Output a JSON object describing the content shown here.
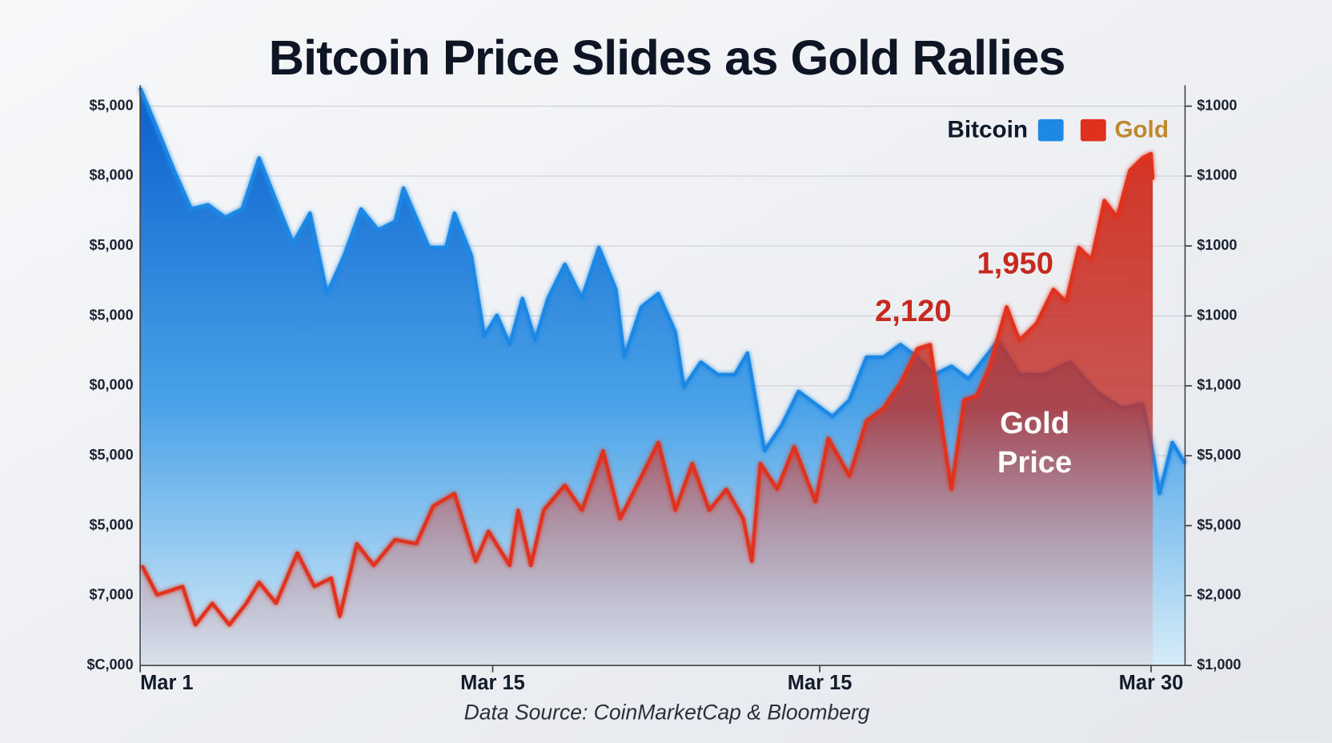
{
  "chart_data": {
    "type": "area",
    "title": "Bitcoin Price Slides as Gold Rallies",
    "source": "Data Source: CoinMarketCap & Bloomberg",
    "grid": true,
    "legend": "upper right",
    "xlim": [
      0,
      123
    ],
    "xticks": [
      {
        "value": 0,
        "label": "Mar 1"
      },
      {
        "value": 41.5,
        "label": "Mar 15"
      },
      {
        "value": 80,
        "label": "Mar 15"
      },
      {
        "value": 119,
        "label": "Mar 30"
      }
    ],
    "ylim": [
      0,
      8.3
    ],
    "yticks": [
      {
        "value": 0,
        "label": "$C,000"
      },
      {
        "value": 1,
        "label": "$7,000"
      },
      {
        "value": 2,
        "label": "$5,000"
      },
      {
        "value": 3,
        "label": "$5,000"
      },
      {
        "value": 4,
        "label": "$0,000"
      },
      {
        "value": 5,
        "label": "$5,000"
      },
      {
        "value": 6,
        "label": "$5,000"
      },
      {
        "value": 7,
        "label": "$8,000"
      },
      {
        "value": 8,
        "label": "$5,000"
      }
    ],
    "y2lim": [
      0,
      8.3
    ],
    "y2ticks": [
      {
        "value": 0,
        "label": "$1,000"
      },
      {
        "value": 1,
        "label": "$2,000"
      },
      {
        "value": 2,
        "label": "$5,000"
      },
      {
        "value": 3,
        "label": "$5,000"
      },
      {
        "value": 4,
        "label": "$1,000"
      },
      {
        "value": 5,
        "label": "$1000"
      },
      {
        "value": 6,
        "label": "$1000"
      },
      {
        "value": 7,
        "label": "$1000"
      },
      {
        "value": 8,
        "label": "$1000"
      }
    ],
    "series": [
      {
        "name": "Bitcoin",
        "color": "#1e88e5",
        "x": [
          0,
          2,
          4,
          6,
          8,
          10,
          12,
          14,
          16,
          18,
          20,
          22,
          24,
          26,
          28,
          30,
          31,
          34,
          36,
          37,
          39,
          40.5,
          42,
          43.5,
          45,
          46.5,
          48,
          50,
          52,
          54,
          56,
          57,
          59,
          61,
          63,
          64,
          66,
          68,
          70,
          71.5,
          73.5,
          75.5,
          77.5,
          79.5,
          81.5,
          83.5,
          85.5,
          87.5,
          89.5,
          91.5,
          93.5,
          95.5,
          97.5,
          99.5,
          101,
          103.5,
          106.5,
          109.5,
          112.5,
          115.5,
          118,
          119,
          120,
          121.5,
          123
        ],
        "values": [
          8.26,
          7.68,
          7.08,
          6.53,
          6.59,
          6.41,
          6.53,
          7.26,
          6.65,
          6.04,
          6.47,
          5.32,
          5.86,
          6.53,
          6.23,
          6.35,
          6.83,
          5.98,
          5.98,
          6.47,
          5.86,
          4.71,
          5.01,
          4.59,
          5.25,
          4.65,
          5.25,
          5.74,
          5.25,
          5.98,
          5.38,
          4.41,
          5.13,
          5.32,
          4.77,
          3.98,
          4.34,
          4.16,
          4.16,
          4.47,
          3.07,
          3.43,
          3.92,
          3.74,
          3.56,
          3.8,
          4.41,
          4.41,
          4.59,
          4.41,
          4.16,
          4.28,
          4.1,
          4.41,
          4.65,
          4.16,
          4.16,
          4.34,
          3.92,
          3.68,
          3.74,
          3.19,
          2.46,
          3.19,
          2.89
        ]
      },
      {
        "name": "Gold",
        "color": "#e0301e",
        "axis": "y2",
        "x": [
          0.2,
          2,
          3.5,
          5,
          6.5,
          8.5,
          10.5,
          12.5,
          14,
          16,
          18.5,
          20.5,
          22.5,
          23.5,
          25.5,
          27.5,
          30,
          32.5,
          34.5,
          37,
          39.5,
          41,
          43.5,
          44.5,
          46,
          47.5,
          50,
          52,
          54.5,
          56.5,
          58.5,
          61,
          63,
          65,
          67,
          69,
          71,
          72,
          73,
          75,
          77,
          79.5,
          81,
          83.5,
          85.5,
          87.5,
          89.5,
          91.5,
          93,
          94.5,
          95.5,
          97,
          98.5,
          100,
          102,
          103.5,
          105.5,
          107.5,
          109,
          110.5,
          112,
          113.5,
          115,
          116.5,
          118,
          119,
          119.2
        ],
        "values": [
          1.43,
          1.01,
          1.07,
          1.13,
          0.58,
          0.89,
          0.58,
          0.89,
          1.19,
          0.89,
          1.61,
          1.13,
          1.25,
          0.7,
          1.74,
          1.43,
          1.8,
          1.74,
          2.28,
          2.46,
          1.49,
          1.92,
          1.43,
          2.22,
          1.43,
          2.22,
          2.58,
          2.22,
          3.07,
          2.1,
          2.58,
          3.19,
          2.22,
          2.89,
          2.22,
          2.52,
          2.1,
          1.49,
          2.89,
          2.52,
          3.13,
          2.34,
          3.25,
          2.71,
          3.5,
          3.68,
          4.04,
          4.53,
          4.59,
          3.31,
          2.52,
          3.8,
          3.86,
          4.28,
          5.13,
          4.65,
          4.89,
          5.38,
          5.2,
          5.98,
          5.8,
          6.65,
          6.41,
          7.08,
          7.26,
          7.32,
          6.95
        ]
      }
    ],
    "annotations": [
      {
        "text": "2,120",
        "color": "#c62a1e"
      },
      {
        "text": "1,950",
        "color": "#c62a1e"
      },
      {
        "lines": [
          "Gold",
          "Price"
        ],
        "color": "#ffffff"
      }
    ]
  }
}
